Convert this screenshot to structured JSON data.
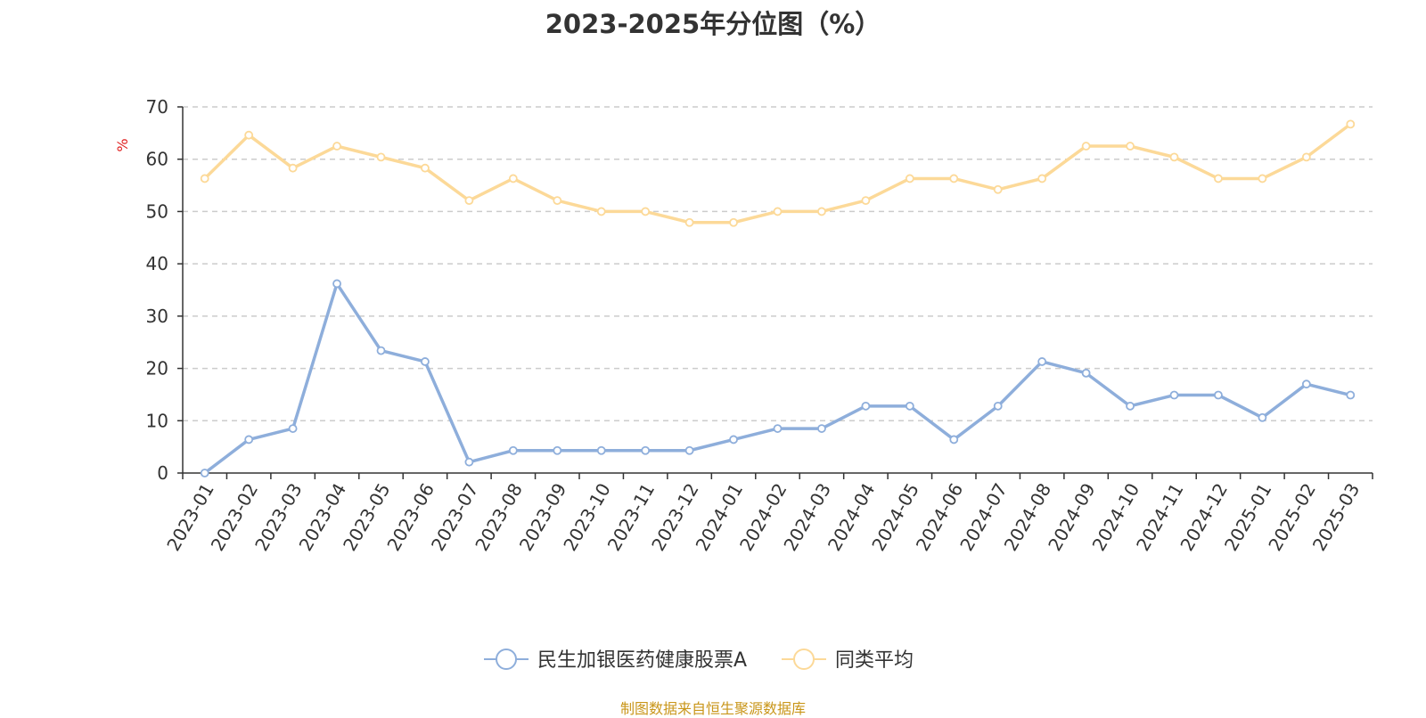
{
  "chart_data": {
    "type": "line",
    "title": "2023-2025年分位图（%）",
    "ylabel": "%",
    "xlabel": "",
    "ylim": [
      0,
      70
    ],
    "yticks": [
      0,
      10,
      20,
      30,
      40,
      50,
      60,
      70
    ],
    "grid": true,
    "legend_position": "bottom-center",
    "categories": [
      "2023-01",
      "2023-02",
      "2023-03",
      "2023-04",
      "2023-05",
      "2023-06",
      "2023-07",
      "2023-08",
      "2023-09",
      "2023-10",
      "2023-11",
      "2023-12",
      "2024-01",
      "2024-02",
      "2024-03",
      "2024-04",
      "2024-05",
      "2024-06",
      "2024-07",
      "2024-08",
      "2024-09",
      "2024-10",
      "2024-11",
      "2024-12",
      "2025-01",
      "2025-02",
      "2025-03"
    ],
    "series": [
      {
        "name": "民生加银医药健康股票A",
        "color": "#8eaedb",
        "values": [
          0,
          6.4,
          8.5,
          36.2,
          23.4,
          21.3,
          2.1,
          4.3,
          4.3,
          4.3,
          4.3,
          4.3,
          6.4,
          8.5,
          8.5,
          12.8,
          12.8,
          6.4,
          12.8,
          21.3,
          19.1,
          12.8,
          14.9,
          14.9,
          10.6,
          17.0,
          14.9
        ]
      },
      {
        "name": "同类平均",
        "color": "#fcd998",
        "values": [
          56.3,
          64.6,
          58.3,
          62.5,
          60.4,
          58.3,
          52.1,
          56.3,
          52.1,
          50.0,
          50.0,
          47.9,
          47.9,
          50.0,
          50.0,
          52.1,
          56.3,
          56.3,
          54.2,
          56.3,
          62.5,
          62.5,
          60.4,
          56.3,
          56.3,
          60.4,
          66.7
        ]
      }
    ]
  },
  "footer": "制图数据来自恒生聚源数据库"
}
